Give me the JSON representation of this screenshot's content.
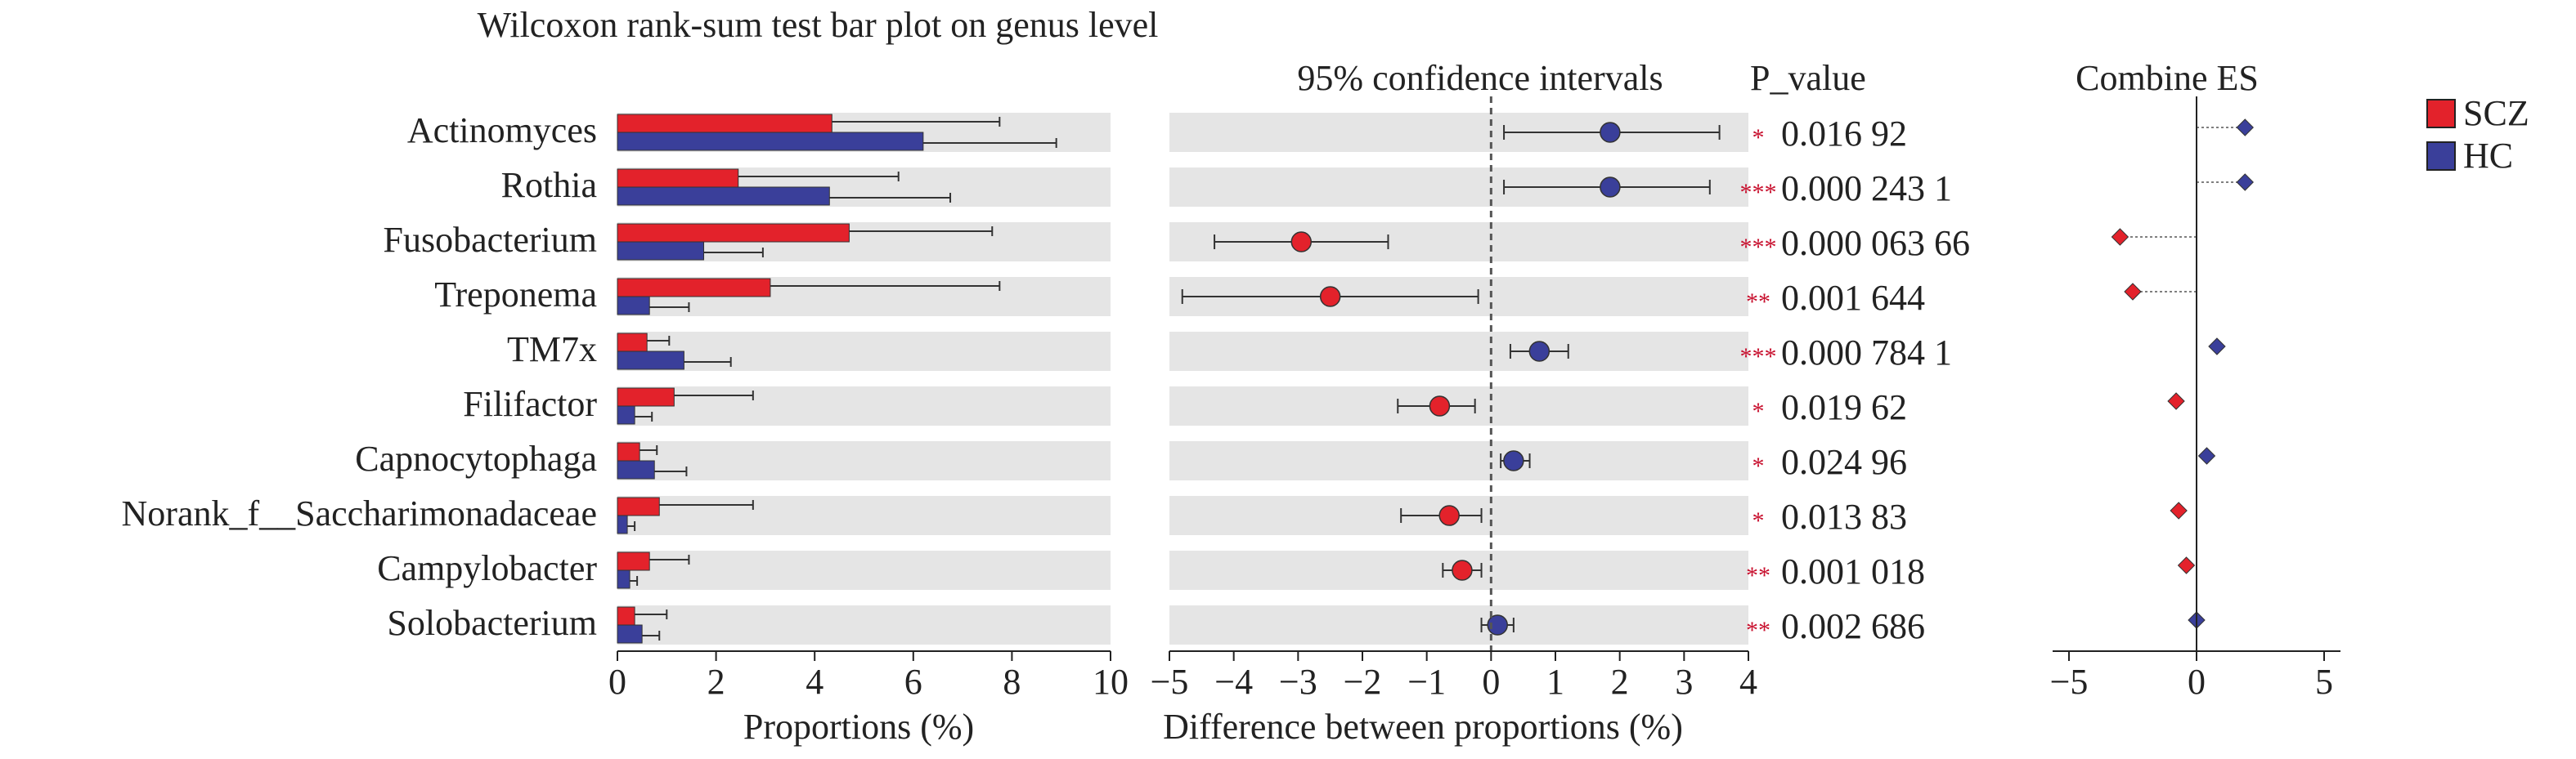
{
  "chart_data": {
    "type": "bar",
    "title": "Wilcoxon rank-sum test bar plot on genus level",
    "categories": [
      "Actinomyces",
      "Rothia",
      "Fusobacterium",
      "Treponema",
      "TM7x",
      "Filifactor",
      "Capnocytophaga",
      "Norank_f__Saccharimonadaceae",
      "Campylobacter",
      "Solobacterium"
    ],
    "legend": {
      "placement": "top-right",
      "items": [
        {
          "name": "SCZ",
          "color": "#e3222b"
        },
        {
          "name": "HC",
          "color": "#3a3f9a"
        }
      ]
    },
    "panels": {
      "proportions": {
        "type": "bar",
        "xlabel": "Proportions (%)",
        "xlim": [
          0,
          10
        ],
        "ticks": [
          0,
          2,
          4,
          6,
          8,
          10
        ],
        "series": [
          {
            "name": "SCZ",
            "color": "#e3222b",
            "values": [
              4.35,
              2.45,
              4.7,
              3.1,
              0.6,
              1.15,
              0.45,
              0.85,
              0.65,
              0.35
            ],
            "errors": [
              3.4,
              3.25,
              2.9,
              4.65,
              0.45,
              1.6,
              0.35,
              1.9,
              0.8,
              0.65
            ]
          },
          {
            "name": "HC",
            "color": "#3a3f9a",
            "values": [
              6.2,
              4.3,
              1.75,
              0.65,
              1.35,
              0.35,
              0.75,
              0.2,
              0.25,
              0.5
            ],
            "errors": [
              2.7,
              2.45,
              1.2,
              0.8,
              0.95,
              0.35,
              0.65,
              0.15,
              0.15,
              0.35
            ]
          }
        ]
      },
      "difference": {
        "type": "scatter",
        "title": "95% confidence intervals",
        "xlabel": "Difference between proportions (%)",
        "xlim": [
          -5,
          4
        ],
        "ticks": [
          -5,
          -4,
          -3,
          -2,
          -1,
          0,
          1,
          2,
          3,
          4
        ],
        "reference_line": 0,
        "values": [
          1.85,
          1.85,
          -2.95,
          -2.5,
          0.75,
          -0.8,
          0.35,
          -0.65,
          -0.45,
          0.1
        ],
        "ci_low": [
          0.2,
          0.2,
          -4.3,
          -4.8,
          0.3,
          -1.45,
          0.15,
          -1.4,
          -0.75,
          -0.15
        ],
        "ci_high": [
          3.55,
          3.4,
          -1.6,
          -0.2,
          1.2,
          -0.25,
          0.6,
          -0.15,
          -0.15,
          0.35
        ],
        "colors": [
          "#3a3f9a",
          "#3a3f9a",
          "#e3222b",
          "#e3222b",
          "#3a3f9a",
          "#e3222b",
          "#3a3f9a",
          "#e3222b",
          "#e3222b",
          "#3a3f9a"
        ]
      },
      "p_values": {
        "title": "P_value",
        "stars": [
          "*",
          "***",
          "***",
          "**",
          "***",
          "*",
          "*",
          "*",
          "**",
          "**"
        ],
        "values": [
          "0.016 92",
          "0.000 243 1",
          "0.000 063 66",
          "0.001 644",
          "0.000 784 1",
          "0.019 62",
          "0.024 96",
          "0.013 83",
          "0.001 018",
          "0.002 686"
        ]
      },
      "combine_es": {
        "type": "scatter",
        "title": "Combine ES",
        "xlim": [
          -5,
          5
        ],
        "ticks": [
          -5,
          0,
          5
        ],
        "values": [
          1.9,
          1.9,
          -3.0,
          -2.5,
          0.8,
          -0.8,
          0.4,
          -0.7,
          -0.4,
          0.0
        ],
        "colors": [
          "#3a3f9a",
          "#3a3f9a",
          "#e3222b",
          "#e3222b",
          "#3a3f9a",
          "#e3222b",
          "#3a3f9a",
          "#e3222b",
          "#e3222b",
          "#3a3f9a"
        ]
      }
    }
  }
}
